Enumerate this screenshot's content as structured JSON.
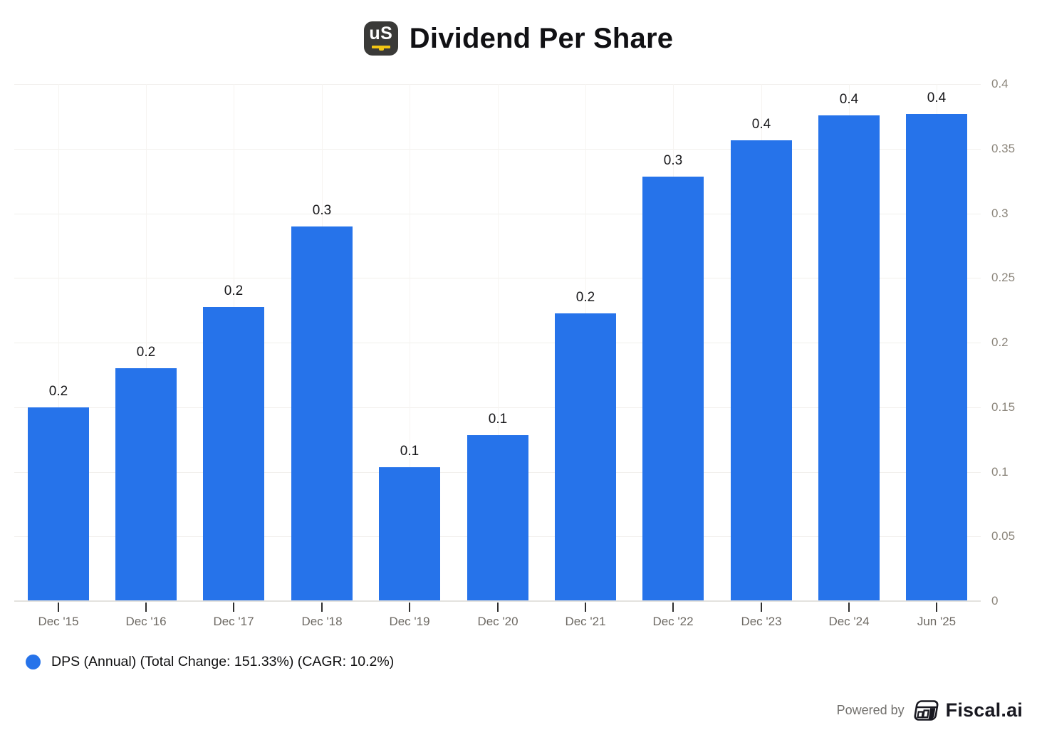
{
  "header": {
    "title": "Dividend Per Share",
    "logo_text": "uS"
  },
  "chart_data": {
    "type": "bar",
    "title": "Dividend Per Share",
    "categories": [
      "Dec '15",
      "Dec '16",
      "Dec '17",
      "Dec '18",
      "Dec '19",
      "Dec '20",
      "Dec '21",
      "Dec '22",
      "Dec '23",
      "Dec '24",
      "Jun '25"
    ],
    "values": [
      0.15,
      0.18,
      0.2275,
      0.29,
      0.1035,
      0.1285,
      0.2225,
      0.3285,
      0.3565,
      0.3755,
      0.377
    ],
    "value_labels": [
      "0.2",
      "0.2",
      "0.2",
      "0.3",
      "0.1",
      "0.1",
      "0.2",
      "0.3",
      "0.4",
      "0.4",
      "0.4"
    ],
    "xlabel": "",
    "ylabel": "",
    "ylim": [
      0,
      0.4
    ],
    "yticks": [
      0,
      0.05,
      0.1,
      0.15,
      0.2,
      0.25,
      0.3,
      0.35,
      0.4
    ],
    "ytick_labels": [
      "0",
      "0.05",
      "0.1",
      "0.15",
      "0.2",
      "0.25",
      "0.3",
      "0.35",
      "0.4"
    ],
    "grid": true,
    "y_axis_side": "right",
    "bar_color": "#2673ea",
    "legend_position": "bottom-left",
    "series_name": "DPS (Annual)"
  },
  "legend": {
    "label": "DPS (Annual) (Total Change: 151.33%) (CAGR: 10.2%)"
  },
  "footer": {
    "powered_by": "Powered by",
    "brand": "Fiscal.ai",
    "logo_icon": "fiscalai-grid-icon"
  }
}
